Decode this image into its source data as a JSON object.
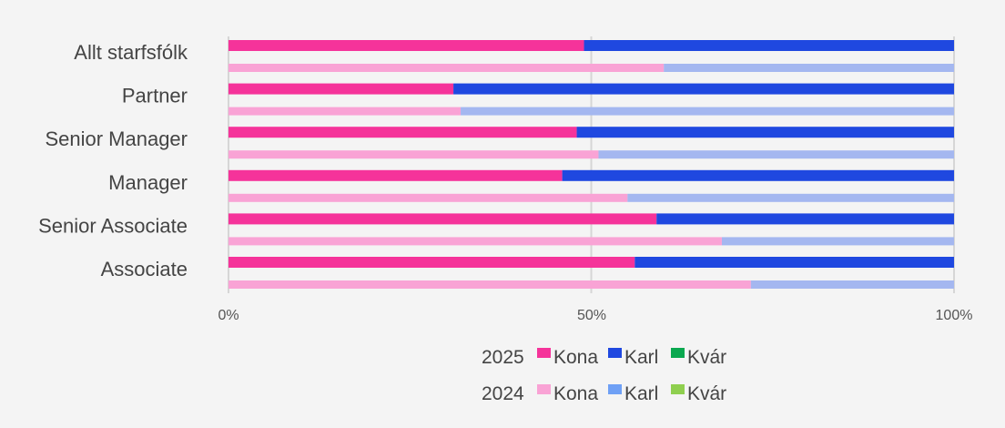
{
  "chart_data": {
    "type": "bar",
    "orientation": "horizontal",
    "stacked": "100%",
    "categories": [
      "Allt starfsfólk",
      "Partner",
      "Senior Manager",
      "Manager",
      "Senior Associate",
      "Associate"
    ],
    "groups": [
      {
        "name": "2025",
        "series": [
          {
            "name": "Kona",
            "color": "#f5339a",
            "values": [
              49,
              31,
              48,
              46,
              59,
              56
            ]
          },
          {
            "name": "Karl",
            "color": "#1f48e0",
            "values": [
              51,
              69,
              52,
              54,
              41,
              44
            ]
          },
          {
            "name": "Kvár",
            "color": "#0aa84f",
            "values": [
              0,
              0,
              0,
              0,
              0,
              0
            ]
          }
        ]
      },
      {
        "name": "2024",
        "series": [
          {
            "name": "Kona",
            "color": "#f9a3d5",
            "values": [
              60,
              32,
              51,
              55,
              68,
              72
            ]
          },
          {
            "name": "Karl",
            "color": "#a4b7f0",
            "legend_color": "#6fa0f5",
            "values": [
              40,
              68,
              49,
              45,
              32,
              28
            ]
          },
          {
            "name": "Kvár",
            "color": "#8fcf4f",
            "values": [
              0,
              0,
              0,
              0,
              0,
              0
            ]
          }
        ]
      }
    ],
    "x_ticks": [
      "0%",
      "50%",
      "100%"
    ],
    "xlim": [
      0,
      100
    ],
    "grid": true,
    "legend_position": "bottom"
  }
}
